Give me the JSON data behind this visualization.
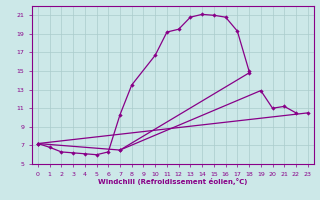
{
  "xlabel": "Windchill (Refroidissement éolien,°C)",
  "background_color": "#cce8e8",
  "grid_color": "#aacccc",
  "line_color": "#880088",
  "x_min": 0,
  "x_max": 23,
  "y_min": 5,
  "y_max": 22,
  "yticks": [
    5,
    7,
    9,
    11,
    13,
    15,
    17,
    19,
    21
  ],
  "curve1_x": [
    0,
    1,
    2,
    3,
    4,
    5,
    6,
    7,
    8,
    10,
    11,
    12,
    13,
    14,
    15,
    16,
    17,
    18
  ],
  "curve1_y": [
    7.2,
    6.8,
    6.3,
    6.2,
    6.1,
    6.0,
    6.3,
    10.3,
    13.5,
    16.7,
    19.2,
    19.5,
    20.8,
    21.1,
    21.0,
    20.8,
    19.3,
    15.0
  ],
  "curve2_x": [
    0,
    7,
    18
  ],
  "curve2_y": [
    7.2,
    6.5,
    14.8
  ],
  "curve3_x": [
    7,
    19,
    20,
    21,
    22
  ],
  "curve3_y": [
    6.5,
    12.9,
    11.0,
    11.2,
    10.5
  ],
  "curve4_x": [
    0,
    23
  ],
  "curve4_y": [
    7.2,
    10.5
  ]
}
